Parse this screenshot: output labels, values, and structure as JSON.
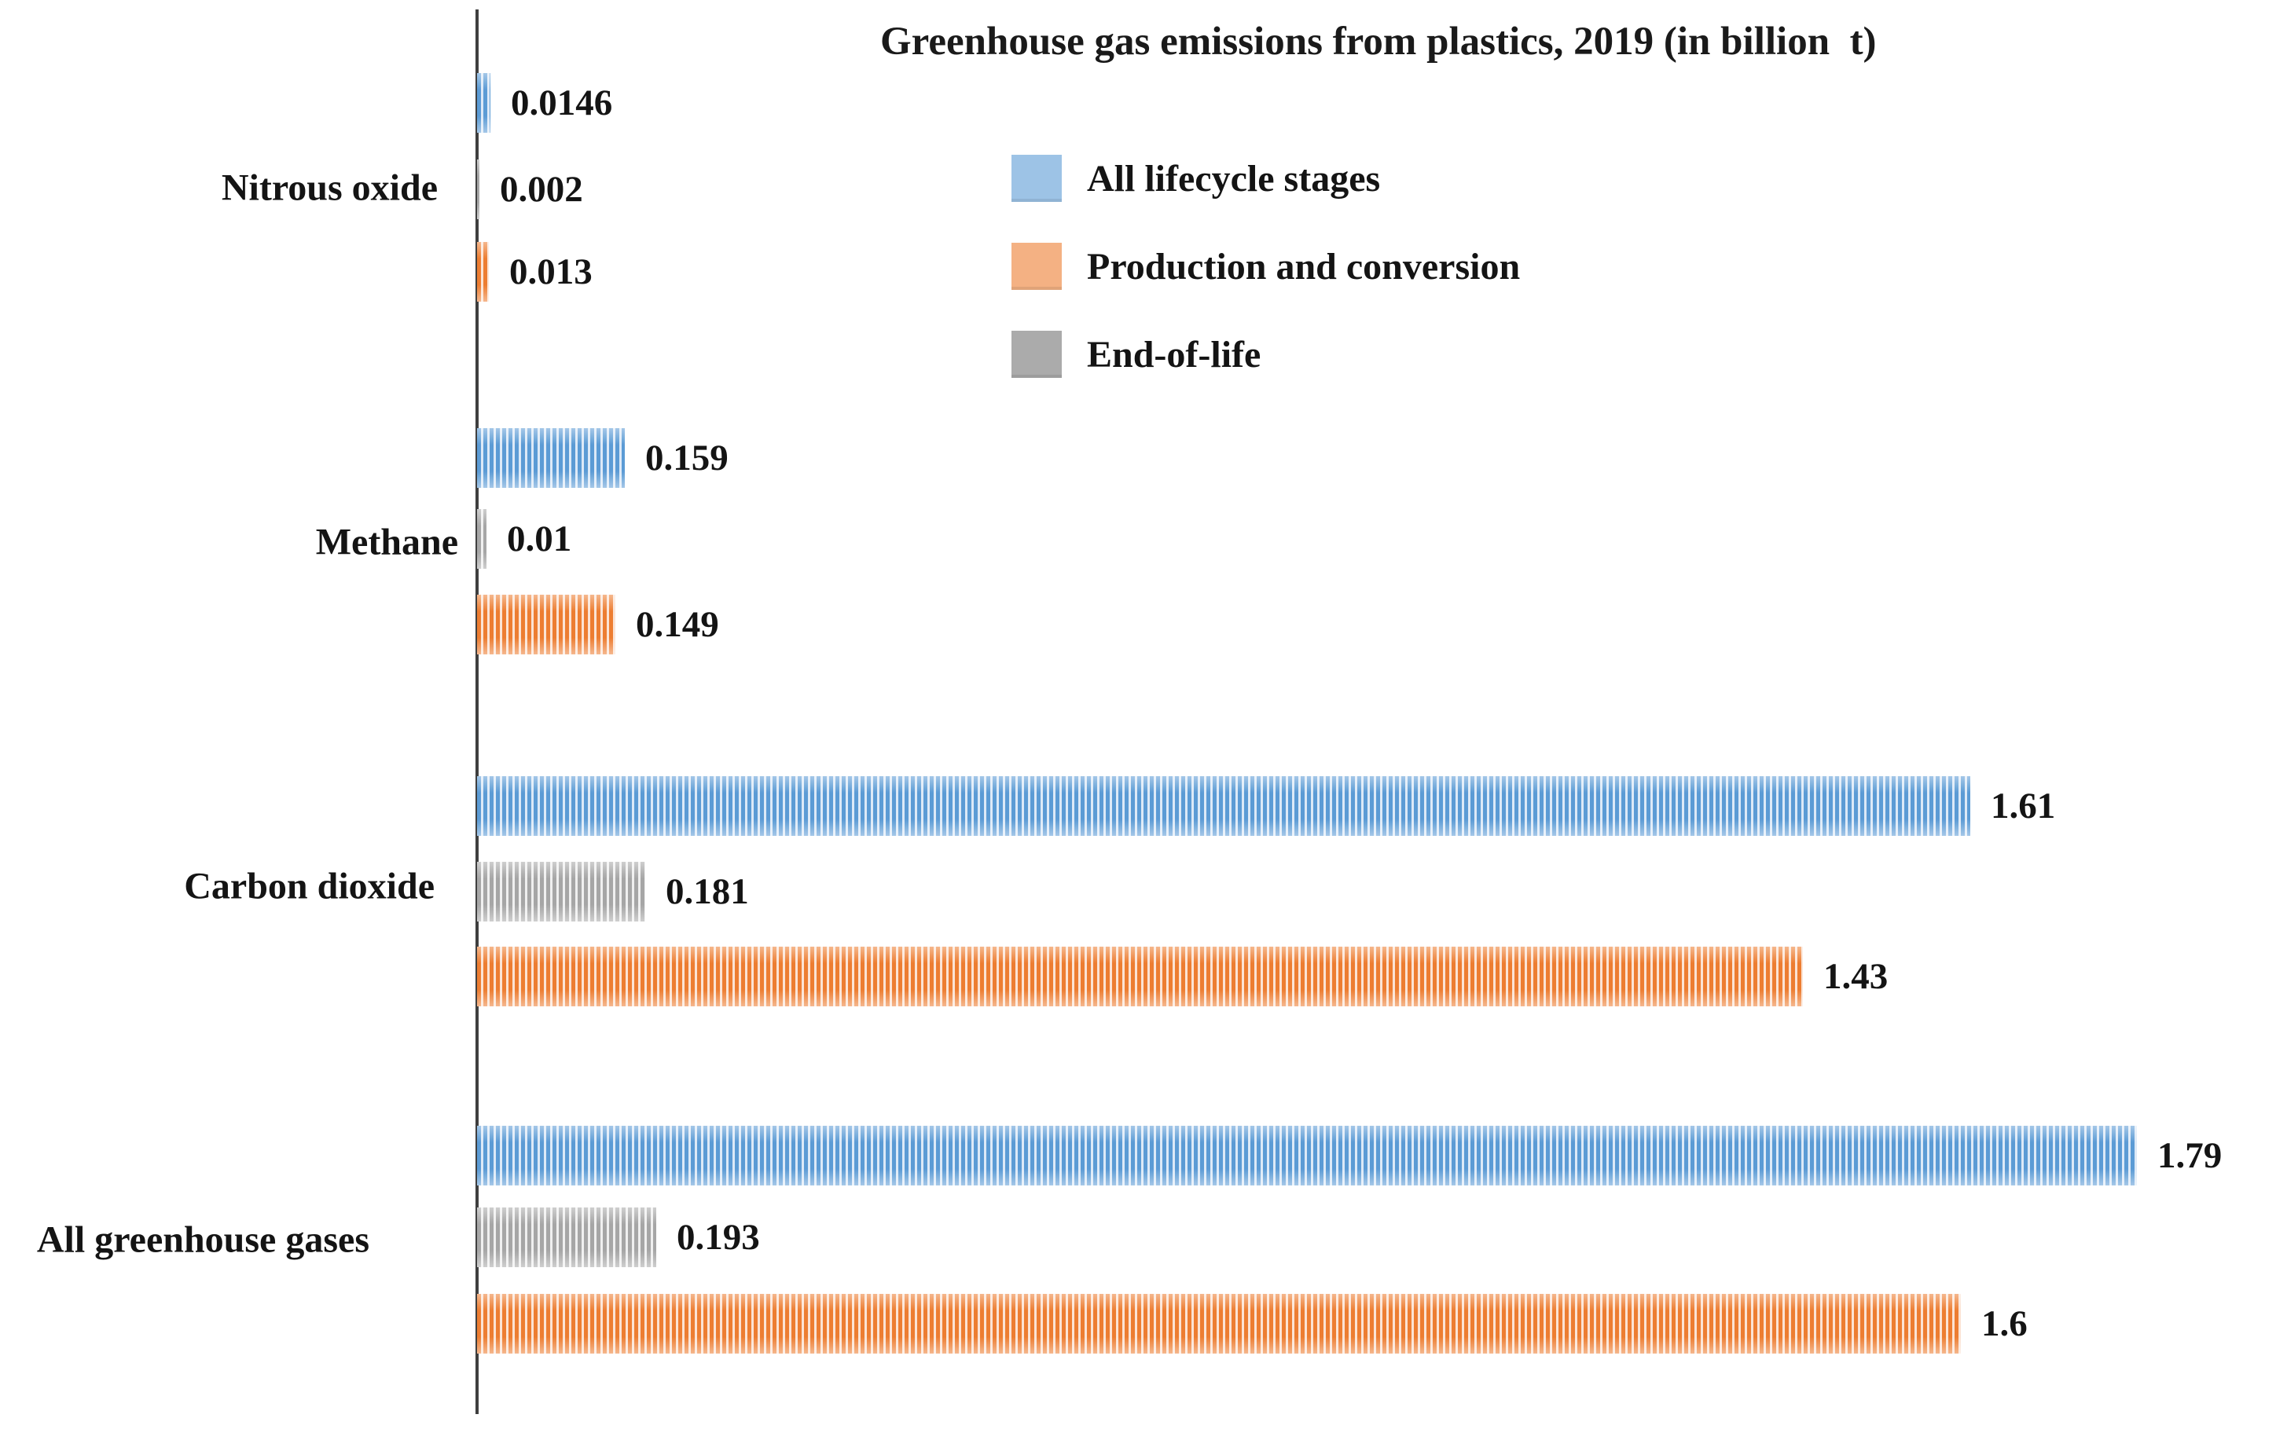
{
  "chart_data": {
    "type": "bar",
    "orientation": "horizontal",
    "title": "Greenhouse gas emissions from plastics, 2019 (in billion  t)",
    "unit": "billion t",
    "categories": [
      "Nitrous oxide",
      "Methane",
      "Carbon dioxide",
      "All greenhouse gases"
    ],
    "series": [
      {
        "name": "All lifecycle stages",
        "color": "#5B9BD5",
        "light": "#DCE9F7",
        "values": [
          0.0146,
          0.159,
          1.61,
          1.79
        ],
        "labels": [
          "0.0146",
          "0.159",
          "1.61",
          "1.79"
        ]
      },
      {
        "name": "End-of-life",
        "color": "#A6A6A6",
        "light": "#EFEFEF",
        "values": [
          0.002,
          0.01,
          0.181,
          0.193
        ],
        "labels": [
          "0.002",
          "0.01",
          "0.181",
          "0.193"
        ]
      },
      {
        "name": "Production and conversion",
        "color": "#ED7D31",
        "light": "#FBE3D4",
        "values": [
          0.013,
          0.149,
          1.43,
          1.6
        ],
        "labels": [
          "0.013",
          "0.149",
          "1.43",
          "1.6"
        ]
      }
    ],
    "legend": [
      {
        "label": "All lifecycle stages",
        "swatch": "#9DC3E6"
      },
      {
        "label": "Production and conversion",
        "swatch": "#F4B183"
      },
      {
        "label": "End-of-life",
        "swatch": "#ABABAB"
      }
    ],
    "bar_row_order_top_to_bottom": [
      "All lifecycle stages",
      "End-of-life",
      "Production and conversion"
    ],
    "xlim": [
      0,
      1.95
    ],
    "grid": false,
    "legend_position": "top-center"
  }
}
